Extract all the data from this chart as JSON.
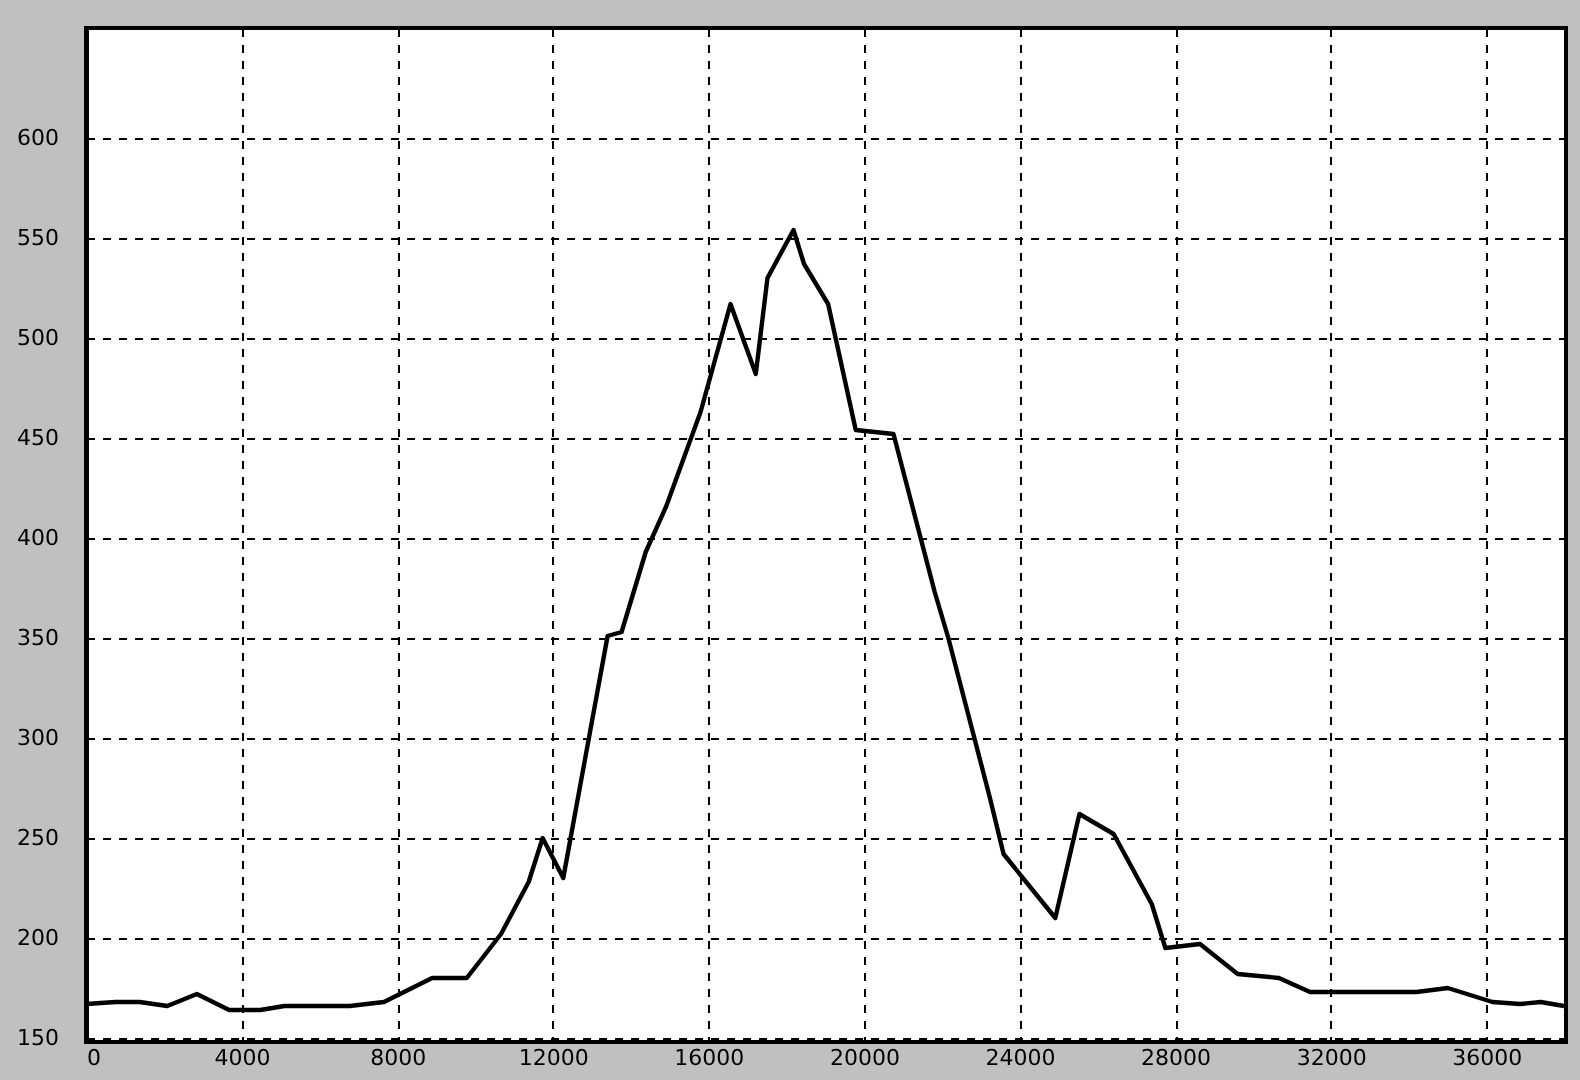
{
  "chart_data": {
    "type": "line",
    "x": [
      0,
      760,
      1380,
      2090,
      2850,
      3680,
      4480,
      5100,
      6780,
      7660,
      8900,
      9790,
      10670,
      11380,
      11740,
      12270,
      13410,
      13770,
      14390,
      14920,
      15800,
      16570,
      17220,
      17520,
      18190,
      18460,
      19080,
      19790,
      20760,
      21820,
      22170,
      23240,
      23590,
      24920,
      25540,
      26420,
      27400,
      27750,
      28640,
      29610,
      30670,
      31470,
      32260,
      34210,
      35010,
      36160,
      36870,
      37400,
      38000
    ],
    "series": [
      {
        "color": "#000000",
        "values": [
          167,
          168,
          168,
          166,
          172,
          164,
          164,
          166,
          166,
          168,
          180,
          180,
          202,
          228,
          250,
          230,
          351,
          353,
          393,
          416,
          463,
          517,
          482,
          530,
          554,
          537,
          517,
          454,
          452,
          373,
          350,
          270,
          242,
          210,
          262,
          252,
          217,
          195,
          197,
          182,
          180,
          173,
          173,
          173,
          175,
          168,
          167,
          168,
          166
        ]
      }
    ],
    "xlim": [
      0,
      38050
    ],
    "xticks": [
      0,
      4000,
      8000,
      12000,
      16000,
      20000,
      24000,
      28000,
      32000,
      36000
    ],
    "ylim": [
      148,
      655
    ],
    "yticks": [
      150,
      200,
      250,
      300,
      350,
      400,
      450,
      500,
      550,
      600
    ],
    "grid": true,
    "line_style": "solid",
    "marker": "none"
  }
}
